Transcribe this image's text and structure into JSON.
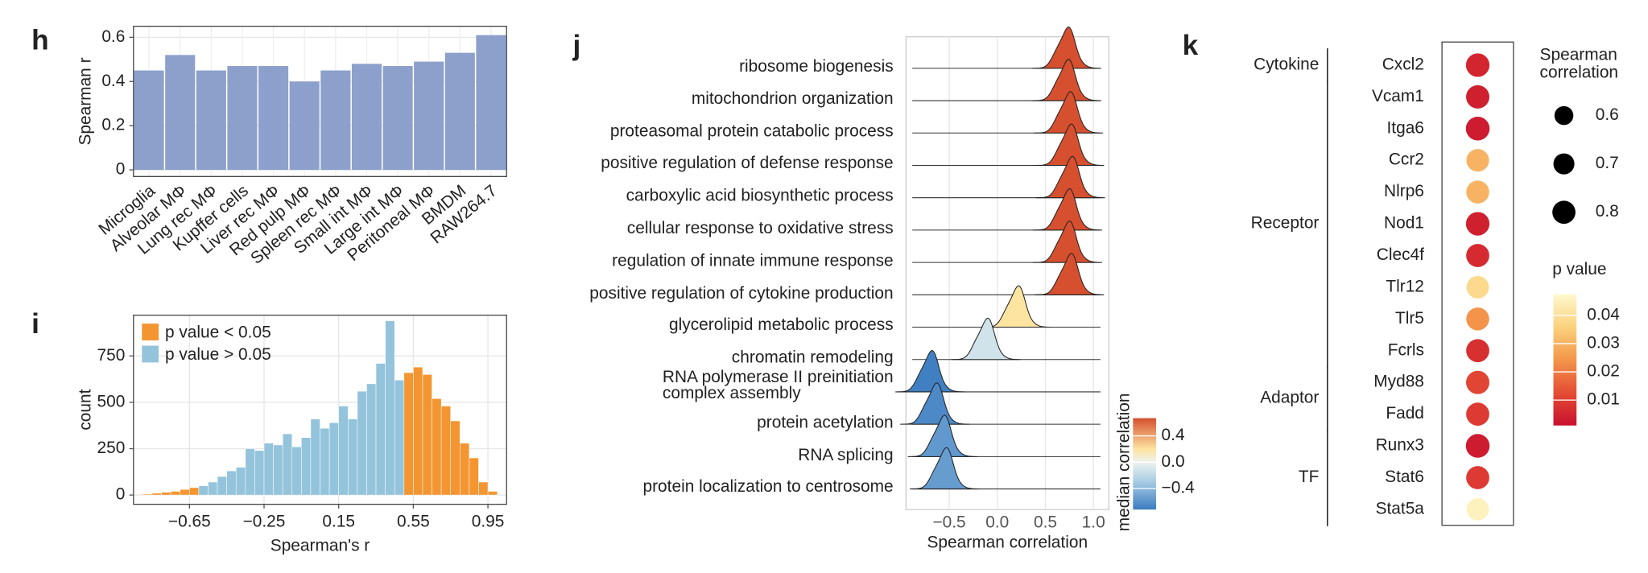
{
  "chart_data": [
    {
      "type": "bar",
      "label": "h",
      "ylabel": "Spearman r",
      "categories": [
        "Microglia",
        "Alveolar MΦ",
        "Lung rec MΦ",
        "Kupffer cells",
        "Liver rec MΦ",
        "Red pulp MΦ",
        "Spleen rec MΦ",
        "Small int MΦ",
        "Large int MΦ",
        "Peritoneal MΦ",
        "BMDM",
        "RAW264.7"
      ],
      "values": [
        0.45,
        0.52,
        0.45,
        0.47,
        0.47,
        0.4,
        0.45,
        0.48,
        0.47,
        0.49,
        0.53,
        0.61
      ],
      "color": "#8da0cb",
      "ylim": [
        -0.03,
        0.65
      ],
      "yticks": [
        0,
        0.2,
        0.4,
        0.6
      ],
      "grid": true
    },
    {
      "type": "histogram",
      "label": "i",
      "xlabel": "Spearman's r",
      "ylabel": "count",
      "bins": [
        -0.9,
        -0.85,
        -0.8,
        -0.75,
        -0.7,
        -0.65,
        -0.6,
        -0.55,
        -0.5,
        -0.45,
        -0.4,
        -0.35,
        -0.3,
        -0.25,
        -0.2,
        -0.15,
        -0.1,
        -0.05,
        0,
        0.05,
        0.1,
        0.15,
        0.2,
        0.25,
        0.3,
        0.35,
        0.4,
        0.45,
        0.5,
        0.55,
        0.6,
        0.65,
        0.7,
        0.75,
        0.8,
        0.85,
        0.9,
        0.95,
        1.0
      ],
      "series": [
        {
          "name": "p value < 0.05",
          "color": "#f39632",
          "values": [
            5,
            10,
            15,
            20,
            30,
            40,
            0,
            0,
            0,
            0,
            0,
            0,
            0,
            0,
            0,
            0,
            0,
            0,
            0,
            0,
            0,
            0,
            0,
            0,
            0,
            0,
            0,
            0,
            660,
            690,
            650,
            520,
            480,
            400,
            280,
            200,
            70,
            20
          ]
        },
        {
          "name": "p value > 0.05",
          "color": "#94c4dc",
          "values": [
            0,
            0,
            0,
            0,
            0,
            0,
            50,
            70,
            100,
            130,
            150,
            250,
            240,
            280,
            270,
            330,
            260,
            310,
            410,
            360,
            390,
            480,
            410,
            560,
            600,
            710,
            940,
            620,
            0,
            0,
            0,
            0,
            0,
            0,
            0,
            0,
            0,
            0
          ]
        }
      ],
      "xlim": [
        -0.95,
        1.05
      ],
      "ylim": [
        -50,
        970
      ],
      "xticks": [
        {
          "value": -0.65,
          "label": "−0.65"
        },
        {
          "value": -0.25,
          "label": "−0.25"
        },
        0.15,
        0.55,
        0.95
      ],
      "yticks": [
        0,
        250,
        500,
        750
      ],
      "grid": true,
      "legend": "top-left"
    },
    {
      "type": "ridgeline",
      "label": "j",
      "xlabel": "Spearman correlation",
      "colorbar_title": "median correlation",
      "categories": [
        "ribosome biogenesis",
        "mitochondrion organization",
        "proteasomal protein catabolic process",
        "positive regulation of defense response",
        "carboxylic acid biosynthetic process",
        "cellular response to oxidative stress",
        "regulation of innate immune response",
        "positive regulation of cytokine production",
        "glycerolipid metabolic process",
        "chromatin remodeling",
        "RNA polymerase II preinitiation\ncomplex assembly",
        "protein acetylation",
        "RNA splicing",
        "protein localization to centrosome"
      ],
      "values": [
        0.72,
        0.72,
        0.74,
        0.75,
        0.76,
        0.73,
        0.73,
        0.75,
        0.2,
        -0.12,
        -0.7,
        -0.65,
        -0.57,
        -0.55
      ],
      "xlim": [
        -0.95,
        1.16
      ],
      "xticks": [
        {
          "value": -0.5,
          "label": "−0.5"
        },
        {
          "value": 0,
          "label": "0.0"
        },
        0.5,
        {
          "value": 1,
          "label": "1.0"
        }
      ],
      "clim": [
        -0.72,
        0.67
      ],
      "cticks": [
        0.4,
        {
          "value": 0,
          "label": "0.0"
        },
        {
          "value": -0.4,
          "label": "−0.4"
        }
      ],
      "colorscale": [
        [
          -0.72,
          "#3b7cc0"
        ],
        [
          -0.3,
          "#a6cbe3"
        ],
        [
          0,
          "#eef3ef"
        ],
        [
          0.2,
          "#fde4a0"
        ],
        [
          0.67,
          "#d6502f"
        ]
      ],
      "grid": true
    },
    {
      "type": "dot",
      "label": "k",
      "size_title": "Spearman correlation",
      "color_title": "p value",
      "groups": [
        {
          "name": "Cytokine",
          "genes": [
            {
              "gene": "Cxcl2",
              "spearman": 0.82,
              "p": 0.005
            }
          ]
        },
        {
          "name": "Receptor",
          "genes": [
            {
              "gene": "Vcam1",
              "spearman": 0.81,
              "p": 0.004
            },
            {
              "gene": "Itga6",
              "spearman": 0.83,
              "p": 0.003
            },
            {
              "gene": "Ccr2",
              "spearman": 0.78,
              "p": 0.03
            },
            {
              "gene": "Nlrp6",
              "spearman": 0.79,
              "p": 0.03
            },
            {
              "gene": "Nod1",
              "spearman": 0.82,
              "p": 0.004
            },
            {
              "gene": "Clec4f",
              "spearman": 0.8,
              "p": 0.006
            },
            {
              "gene": "Tlr12",
              "spearman": 0.77,
              "p": 0.038
            },
            {
              "gene": "Tlr5",
              "spearman": 0.79,
              "p": 0.024
            },
            {
              "gene": "Fcrls",
              "spearman": 0.8,
              "p": 0.007
            }
          ]
        },
        {
          "name": "Adaptor",
          "genes": [
            {
              "gene": "Myd88",
              "spearman": 0.81,
              "p": 0.011
            },
            {
              "gene": "Fadd",
              "spearman": 0.8,
              "p": 0.009
            }
          ]
        },
        {
          "name": "TF",
          "genes": [
            {
              "gene": "Runx3",
              "spearman": 0.83,
              "p": 0.003
            },
            {
              "gene": "Stat6",
              "spearman": 0.8,
              "p": 0.009
            },
            {
              "gene": "Stat5a",
              "spearman": 0.76,
              "p": 0.045
            }
          ]
        }
      ],
      "size_legend": [
        0.6,
        0.7,
        0.8
      ],
      "plim": [
        0.001,
        0.0475
      ],
      "pticks": [
        0.04,
        0.03,
        0.02,
        0.01
      ],
      "colorscale": [
        [
          0.001,
          "#c8102e"
        ],
        [
          0.012,
          "#e34a33"
        ],
        [
          0.025,
          "#f49a4c"
        ],
        [
          0.036,
          "#fbd27e"
        ],
        [
          0.0475,
          "#fef9cf"
        ]
      ]
    }
  ]
}
